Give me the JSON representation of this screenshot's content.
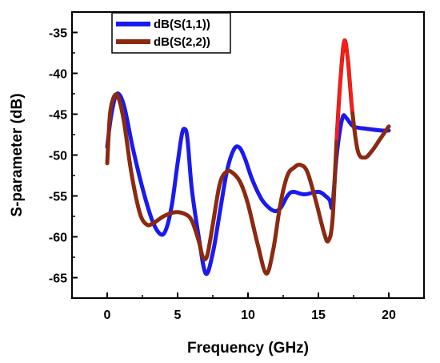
{
  "chart_data": {
    "type": "line",
    "xlabel": "Frequency (GHz)",
    "ylabel": "S-parameter (dB)",
    "xlim": [
      -2.5,
      22.5
    ],
    "ylim": [
      -67.5,
      -32.5
    ],
    "xticks": [
      0,
      5,
      10,
      15,
      20
    ],
    "yticks": [
      -35,
      -40,
      -45,
      -50,
      -55,
      -60,
      -65
    ],
    "legend_position": "top-left",
    "grid": false,
    "series": [
      {
        "name": "dB(S(1,1))",
        "color": "#1a1aee",
        "x": [
          0,
          0.3,
          0.7,
          1.2,
          1.8,
          2.5,
          3.2,
          3.8,
          4.2,
          4.6,
          5.0,
          5.3,
          5.5,
          5.7,
          6.0,
          6.5,
          7.0,
          7.5,
          8.0,
          8.5,
          9.0,
          9.4,
          9.8,
          10.3,
          11.0,
          11.8,
          12.3,
          12.8,
          13.2,
          14.0,
          15.0,
          15.5,
          15.8,
          16.0,
          16.3,
          16.7,
          17.0,
          17.5,
          18.5,
          19.5,
          20.0
        ],
        "y": [
          -49,
          -45,
          -42.5,
          -44,
          -49,
          -54,
          -58,
          -59.7,
          -59,
          -56,
          -51,
          -47.5,
          -46.8,
          -48,
          -54,
          -60,
          -64.5,
          -62,
          -57,
          -52,
          -49.3,
          -49.1,
          -50.5,
          -53,
          -55.5,
          -56.8,
          -56.5,
          -55,
          -54.5,
          -54.8,
          -54.5,
          -55,
          -55.5,
          -56.2,
          -50,
          -45.5,
          -45.5,
          -46.5,
          -46.8,
          -47,
          -47
        ]
      },
      {
        "name": "dB(S(2,2))",
        "color": "#8b2a10",
        "x": [
          0,
          0.2,
          0.5,
          0.8,
          1.2,
          1.7,
          2.3,
          2.8,
          3.3,
          4.0,
          4.8,
          5.5,
          6.0,
          6.5,
          6.8,
          7.1,
          7.5,
          8.0,
          8.5,
          9.0,
          9.5,
          10.0,
          10.7,
          11.3,
          11.8,
          12.3,
          12.8,
          13.3,
          13.7,
          14.2,
          14.8,
          15.4,
          15.7,
          16.0,
          16.3,
          16.6,
          16.85,
          17.1,
          17.4,
          17.8,
          18.3,
          18.8,
          19.4,
          20.0
        ],
        "y": [
          -51,
          -45,
          -42.8,
          -43,
          -46,
          -52,
          -57,
          -58.5,
          -58.3,
          -57.5,
          -57,
          -57.2,
          -58,
          -60.5,
          -62.5,
          -62.3,
          -58.5,
          -53.5,
          -52,
          -52.3,
          -53.5,
          -56,
          -61,
          -64.5,
          -61.5,
          -56,
          -52.5,
          -51.5,
          -51.2,
          -52,
          -55.5,
          -59.5,
          -60.5,
          -58,
          -48,
          -40,
          -36,
          -38.5,
          -44.5,
          -49.5,
          -50.3,
          -49.5,
          -48,
          -46.5
        ]
      }
    ]
  }
}
